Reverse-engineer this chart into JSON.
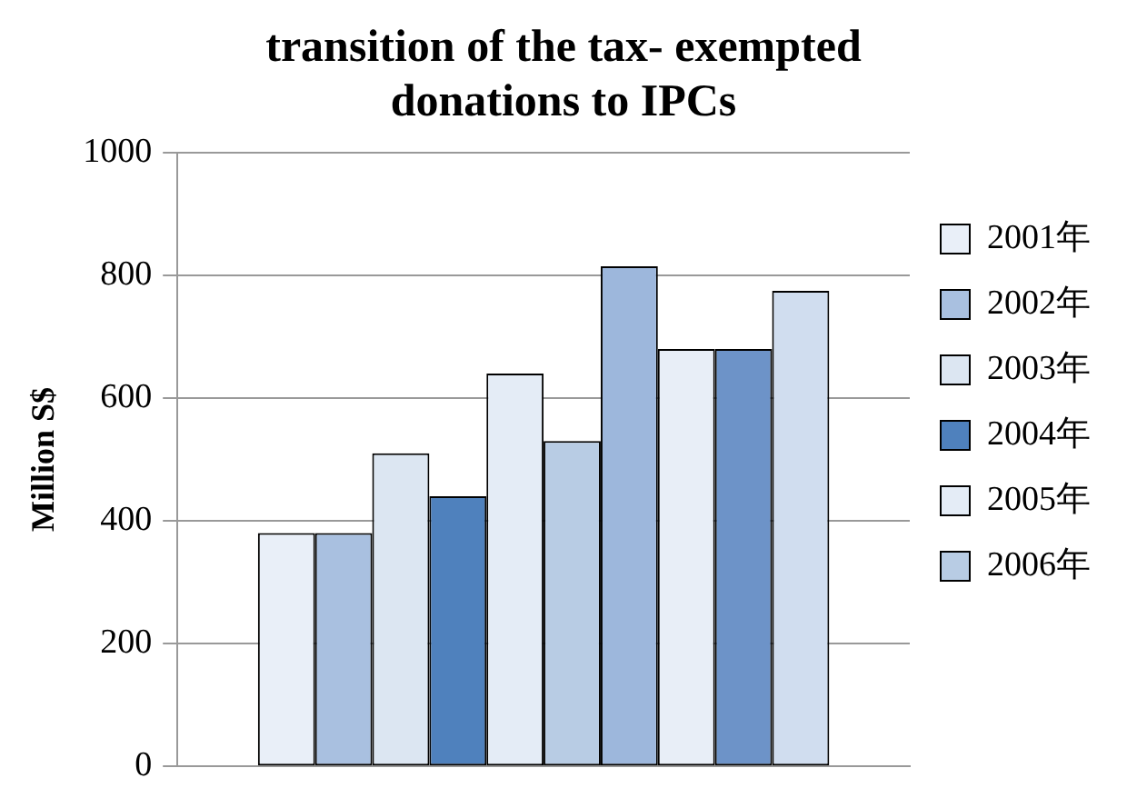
{
  "chart_data": {
    "type": "bar",
    "title": "transition of the tax- exempted donations to IPCs",
    "ylabel": "Million S$",
    "categories": [
      null
    ],
    "series": [
      {
        "name": "2001年",
        "color": "#e9eff8",
        "values": [
          380
        ]
      },
      {
        "name": "2002年",
        "color": "#a9c0e0",
        "values": [
          380
        ]
      },
      {
        "name": "2003年",
        "color": "#dce6f2",
        "values": [
          510
        ]
      },
      {
        "name": "2004年",
        "color": "#4f81bd",
        "values": [
          440
        ]
      },
      {
        "name": "2005年",
        "color": "#e4ecf6",
        "values": [
          640
        ]
      },
      {
        "name": "2006年",
        "color": "#b8cce4",
        "values": [
          530
        ]
      },
      {
        "color": "#9db7dc",
        "values": [
          815
        ]
      },
      {
        "color": "#e8eef7",
        "values": [
          680
        ]
      },
      {
        "color": "#6d93c8",
        "values": [
          680
        ]
      },
      {
        "color": "#d0ddef",
        "values": [
          775
        ]
      }
    ],
    "ylim": [
      0,
      1000
    ],
    "yticks": [
      0,
      200,
      400,
      600,
      800,
      1000
    ],
    "grid": "y",
    "legend": "right",
    "tick_labels": "y"
  }
}
